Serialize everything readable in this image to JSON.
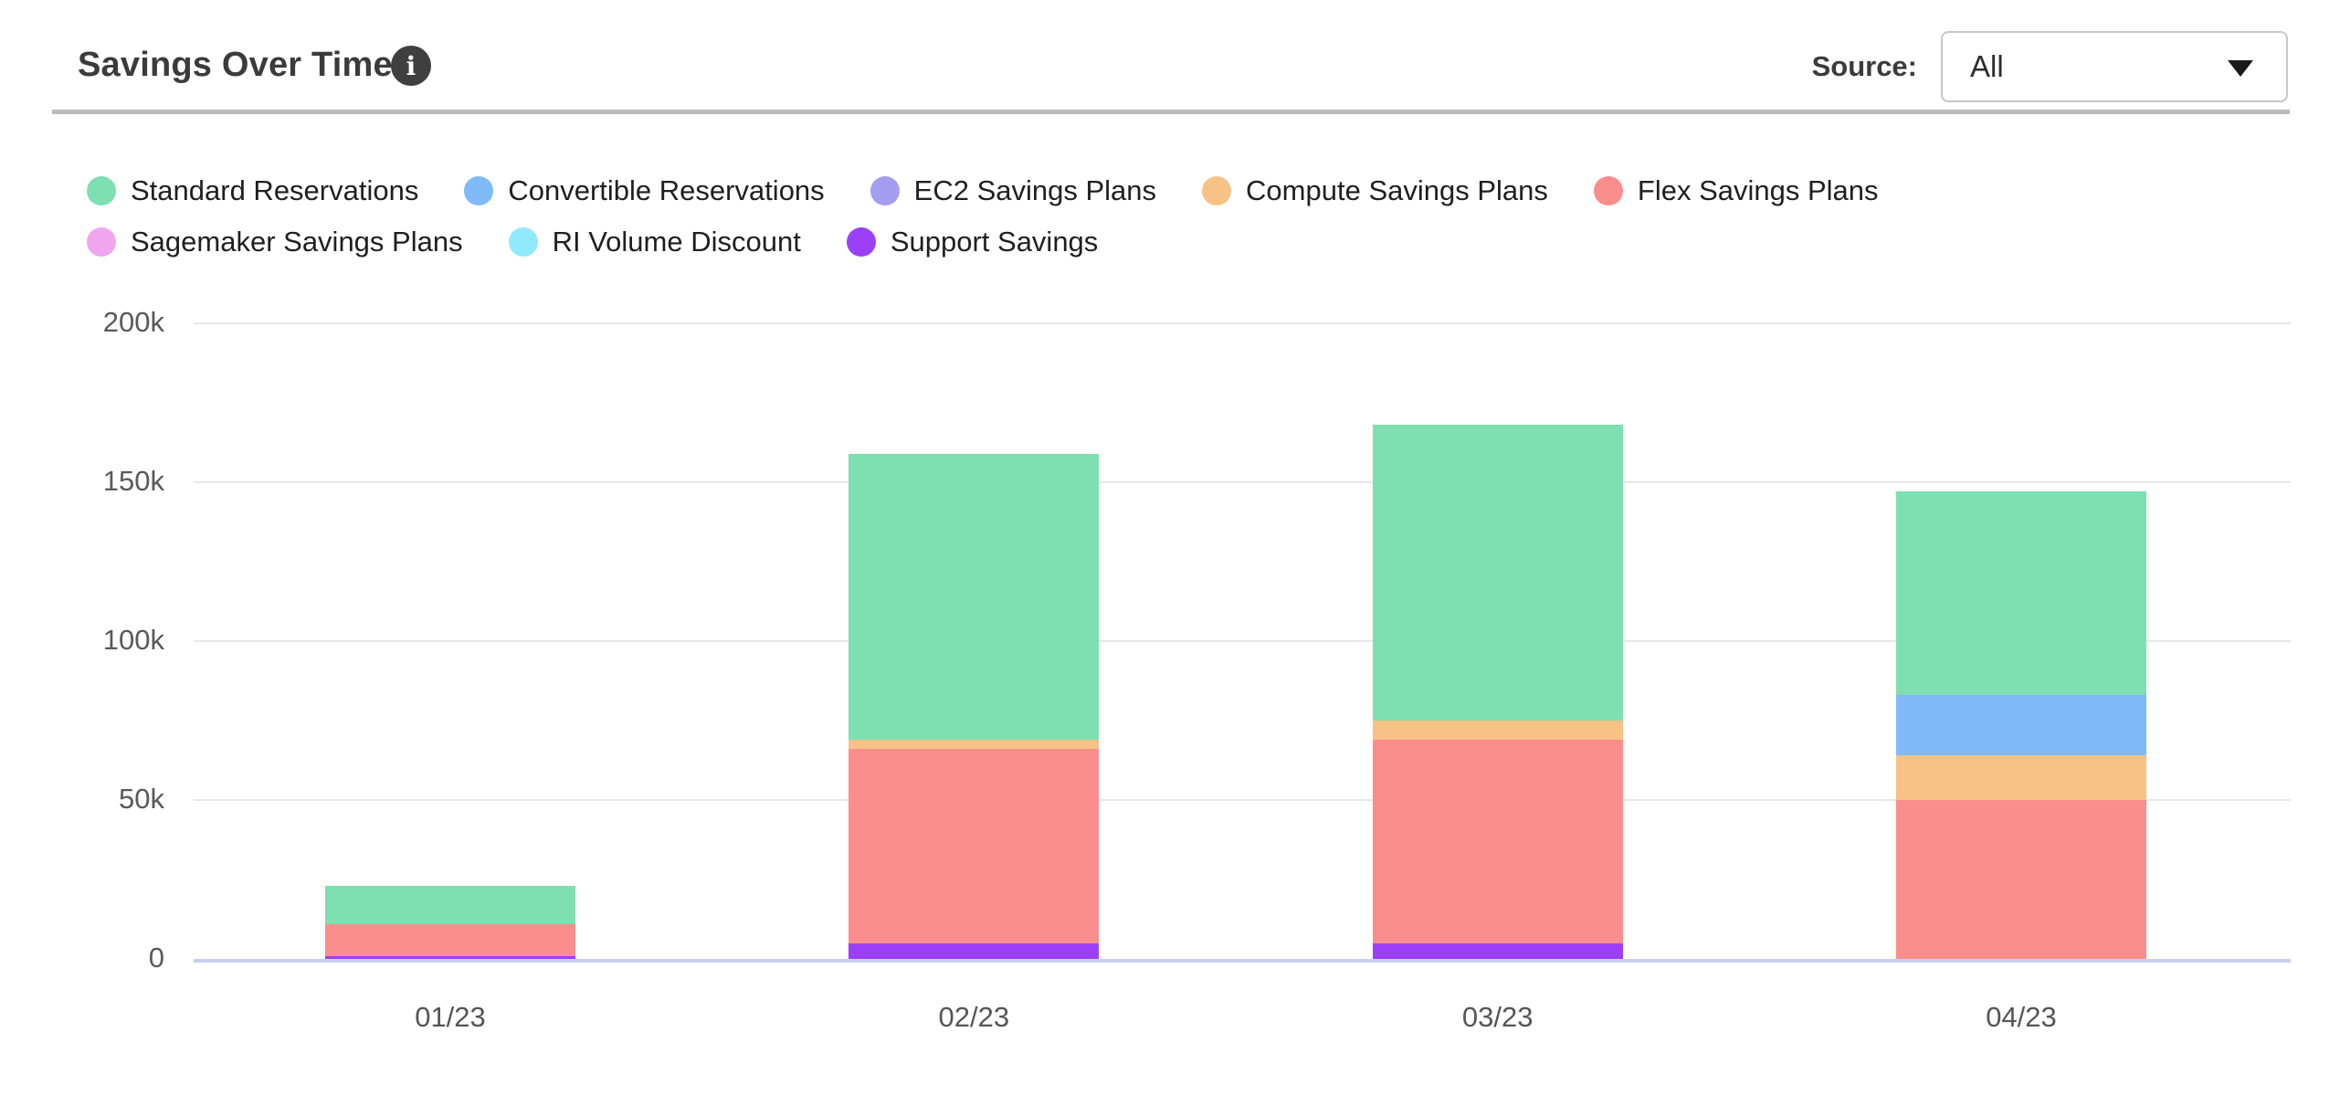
{
  "header": {
    "title": "Savings Over Time",
    "info_icon": "info-icon",
    "source_label": "Source:",
    "source_value": "All"
  },
  "legend": {
    "items": [
      {
        "label": "Standard Reservations",
        "color": "#7edfb1"
      },
      {
        "label": "Convertible Reservations",
        "color": "#80baf8"
      },
      {
        "label": "EC2 Savings Plans",
        "color": "#a49df1"
      },
      {
        "label": "Compute Savings Plans",
        "color": "#f7c285"
      },
      {
        "label": "Flex Savings Plans",
        "color": "#fc8d8d"
      },
      {
        "label": "Sagemaker Savings Plans",
        "color": "#efa6ef"
      },
      {
        "label": "RI Volume Discount",
        "color": "#90e9fc"
      },
      {
        "label": "Support Savings",
        "color": "#9c40f7"
      }
    ]
  },
  "chart_data": {
    "type": "bar",
    "stacked": true,
    "unit": "thousands",
    "categories": [
      "01/23",
      "02/23",
      "03/23",
      "04/23"
    ],
    "series": [
      {
        "name": "Standard Reservations",
        "color": "#7edfb1",
        "values": [
          12,
          90,
          93,
          64
        ]
      },
      {
        "name": "Convertible Reservations",
        "color": "#80baf8",
        "values": [
          0,
          0,
          0,
          19
        ]
      },
      {
        "name": "EC2 Savings Plans",
        "color": "#a49df1",
        "values": [
          0,
          0,
          0,
          0
        ]
      },
      {
        "name": "Compute Savings Plans",
        "color": "#f7c285",
        "values": [
          0,
          3,
          6,
          14
        ]
      },
      {
        "name": "Flex Savings Plans",
        "color": "#fc8d8d",
        "values": [
          10,
          61,
          64,
          50
        ]
      },
      {
        "name": "Sagemaker Savings Plans",
        "color": "#efa6ef",
        "values": [
          0,
          0,
          0,
          0
        ]
      },
      {
        "name": "RI Volume Discount",
        "color": "#90e9fc",
        "values": [
          0,
          0,
          0,
          0
        ]
      },
      {
        "name": "Support Savings",
        "color": "#9c40f7",
        "values": [
          1,
          5,
          5,
          0
        ]
      }
    ],
    "stack_order_bottom_to_top": [
      "Support Savings",
      "Flex Savings Plans",
      "Compute Savings Plans",
      "Convertible Reservations",
      "Standard Reservations",
      "EC2 Savings Plans",
      "Sagemaker Savings Plans",
      "RI Volume Discount"
    ],
    "totals": [
      23,
      159,
      168,
      147
    ],
    "yticks": [
      {
        "value": 0,
        "label": "0"
      },
      {
        "value": 50,
        "label": "50k"
      },
      {
        "value": 100,
        "label": "100k"
      },
      {
        "value": 150,
        "label": "150k"
      },
      {
        "value": 200,
        "label": "200k"
      }
    ],
    "ylim": [
      0,
      200
    ],
    "grid": true,
    "legend_position": "top"
  }
}
